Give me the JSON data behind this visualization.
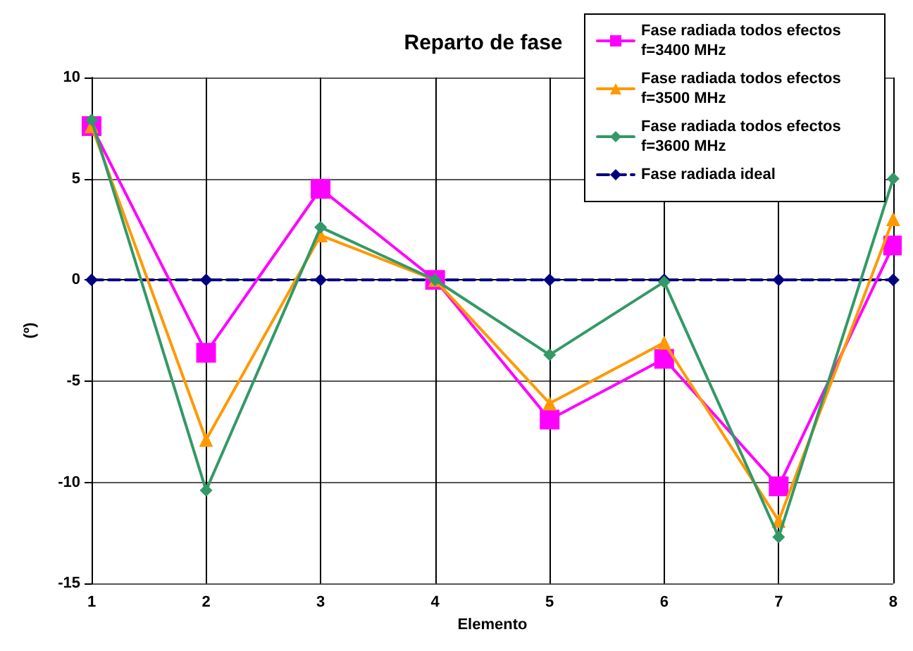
{
  "chart_data": {
    "type": "line",
    "title": "Reparto de fase",
    "xlabel": "Elemento",
    "ylabel": "(º)",
    "x": [
      1,
      2,
      3,
      4,
      5,
      6,
      7,
      8
    ],
    "xlim": [
      1,
      8
    ],
    "xticks": [
      1,
      2,
      3,
      4,
      5,
      6,
      7,
      8
    ],
    "ylim": [
      -15,
      10
    ],
    "yticks": [
      -15,
      -10,
      -5,
      0,
      5,
      10
    ],
    "grid": true,
    "legend": "top right",
    "series": [
      {
        "name": "Fase radiada todos efectos f=3400 MHz",
        "color": "#ff00ff",
        "marker": "square",
        "line_style": "solid",
        "values": [
          7.6,
          -3.6,
          4.5,
          0,
          -6.9,
          -3.9,
          -10.2,
          1.7
        ]
      },
      {
        "name": "Fase radiada todos efectos f=3500 MHz",
        "color": "#ff9900",
        "marker": "triangle",
        "line_style": "solid",
        "values": [
          7.6,
          -7.9,
          2.2,
          0,
          -6.1,
          -3.1,
          -11.9,
          3.0
        ]
      },
      {
        "name": "Fase radiada todos efectos f=3600 MHz",
        "color": "#339966",
        "marker": "diamond",
        "line_style": "solid",
        "values": [
          7.9,
          -10.4,
          2.6,
          0,
          -3.7,
          -0.1,
          -12.7,
          5.0
        ]
      },
      {
        "name": "Fase radiada ideal",
        "color": "#000080",
        "marker": "diamond",
        "line_style": "dashed",
        "values": [
          0,
          0,
          0,
          0,
          0,
          0,
          0,
          0
        ]
      }
    ]
  }
}
